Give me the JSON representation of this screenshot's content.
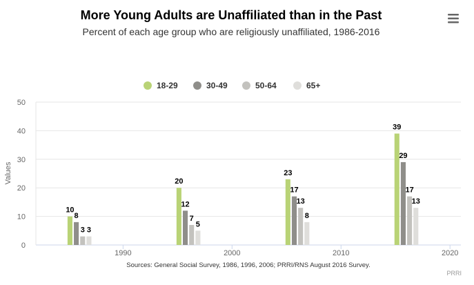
{
  "colors": {
    "series": [
      "#b9d376",
      "#8f8e8a",
      "#c3c2be",
      "#dfdedb"
    ],
    "grid": "#e6e6e6",
    "axis": "#ccd6eb",
    "menu": "#666666"
  },
  "menu": {
    "icon": "hamburger-menu-icon"
  },
  "chart_data": {
    "type": "bar",
    "title": "More Young Adults are Unaffiliated than in the Past",
    "subtitle": "Percent of each age group who are religiously unaffiliated, 1986-2016",
    "xlabel": "",
    "ylabel": "Values",
    "ylim": [
      0,
      50
    ],
    "xlim": [
      1982,
      2021
    ],
    "yticks": [
      0,
      10,
      20,
      30,
      40,
      50
    ],
    "xticks": [
      1990,
      2000,
      2010,
      2020
    ],
    "groups": [
      1986,
      1996,
      2006,
      2016
    ],
    "series": [
      {
        "name": "18-29",
        "values": [
          10,
          20,
          23,
          39
        ]
      },
      {
        "name": "30-49",
        "values": [
          8,
          12,
          17,
          29
        ]
      },
      {
        "name": "50-64",
        "values": [
          3,
          7,
          13,
          17
        ]
      },
      {
        "name": "65+",
        "values": [
          3,
          5,
          8,
          13
        ]
      }
    ],
    "legend_position": "top-center",
    "source": "Sources: General Social Survey, 1986, 1996, 2006; PRRI/RNS August 2016 Survey.",
    "credits": "PRRI"
  }
}
